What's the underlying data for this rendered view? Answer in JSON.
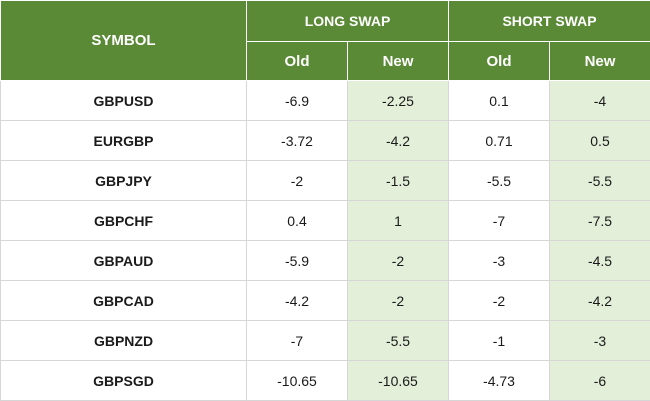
{
  "header": {
    "symbol": "SYMBOL",
    "long_swap": "LONG SWAP",
    "short_swap": "SHORT SWAP",
    "long_old": "Old",
    "long_new": "New",
    "short_old": "Old",
    "short_new": "New"
  },
  "colors": {
    "header_green": "#5a8a36",
    "new_col_tint": "#e3efd9"
  },
  "rows": [
    {
      "symbol": "GBPUSD",
      "long_old": "-6.9",
      "long_new": "-2.25",
      "short_old": "0.1",
      "short_new": "-4"
    },
    {
      "symbol": "EURGBP",
      "long_old": "-3.72",
      "long_new": "-4.2",
      "short_old": "0.71",
      "short_new": "0.5"
    },
    {
      "symbol": "GBPJPY",
      "long_old": "-2",
      "long_new": "-1.5",
      "short_old": "-5.5",
      "short_new": "-5.5"
    },
    {
      "symbol": "GBPCHF",
      "long_old": "0.4",
      "long_new": "1",
      "short_old": "-7",
      "short_new": "-7.5"
    },
    {
      "symbol": "GBPAUD",
      "long_old": "-5.9",
      "long_new": "-2",
      "short_old": "-3",
      "short_new": "-4.5"
    },
    {
      "symbol": "GBPCAD",
      "long_old": "-4.2",
      "long_new": "-2",
      "short_old": "-2",
      "short_new": "-4.2"
    },
    {
      "symbol": "GBPNZD",
      "long_old": "-7",
      "long_new": "-5.5",
      "short_old": "-1",
      "short_new": "-3"
    },
    {
      "symbol": "GBPSGD",
      "long_old": "-10.65",
      "long_new": "-10.65",
      "short_old": "-4.73",
      "short_new": "-6"
    }
  ]
}
